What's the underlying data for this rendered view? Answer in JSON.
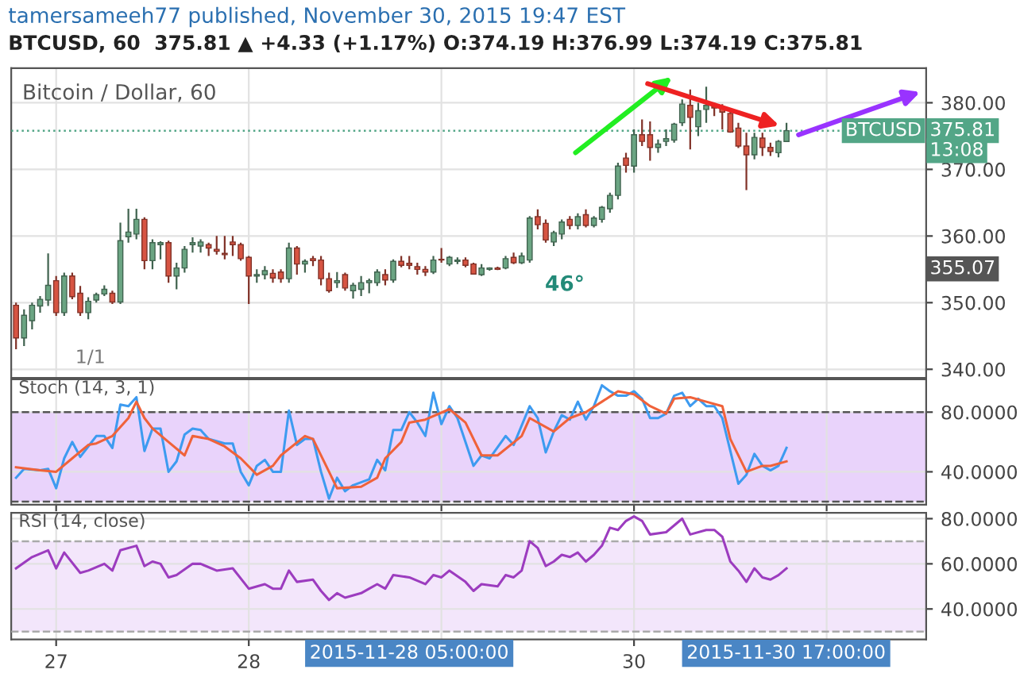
{
  "chart_data": [
    {
      "type": "candlestick",
      "title": "tamersameeh77 published, November 30, 2015 19:47 EST",
      "subtitle": "BTCUSD, 60  375.81 ▲ +4.33 (+1.17%) O:374.19 H:376.99 L:374.19 C:375.81",
      "x": [
        "2015-11-26T19:00",
        "2015-11-26T20:00",
        "2015-11-26T21:00",
        "2015-11-26T22:00",
        "2015-11-26T23:00",
        "2015-11-27T00:00",
        "2015-11-27T01:00",
        "2015-11-27T02:00",
        "2015-11-27T03:00",
        "2015-11-27T04:00",
        "2015-11-27T05:00",
        "2015-11-27T06:00",
        "2015-11-27T07:00",
        "2015-11-27T08:00",
        "2015-11-27T09:00",
        "2015-11-27T10:00",
        "2015-11-27T11:00",
        "2015-11-27T12:00",
        "2015-11-27T13:00",
        "2015-11-27T14:00",
        "2015-11-27T15:00",
        "2015-11-27T16:00",
        "2015-11-27T17:00",
        "2015-11-27T18:00",
        "2015-11-27T19:00",
        "2015-11-27T20:00",
        "2015-11-27T21:00",
        "2015-11-27T22:00",
        "2015-11-27T23:00",
        "2015-11-28T00:00",
        "2015-11-28T01:00",
        "2015-11-28T02:00",
        "2015-11-28T03:00",
        "2015-11-28T04:00",
        "2015-11-28T05:00",
        "2015-11-28T06:00",
        "2015-11-28T07:00",
        "2015-11-28T08:00",
        "2015-11-28T09:00",
        "2015-11-28T10:00",
        "2015-11-28T11:00",
        "2015-11-28T12:00",
        "2015-11-28T13:00",
        "2015-11-28T14:00",
        "2015-11-28T15:00",
        "2015-11-28T16:00",
        "2015-11-28T17:00",
        "2015-11-28T18:00",
        "2015-11-28T19:00",
        "2015-11-28T20:00",
        "2015-11-28T21:00",
        "2015-11-28T22:00",
        "2015-11-28T23:00",
        "2015-11-29T00:00",
        "2015-11-29T01:00",
        "2015-11-29T02:00",
        "2015-11-29T03:00",
        "2015-11-29T04:00",
        "2015-11-29T05:00",
        "2015-11-29T06:00",
        "2015-11-29T07:00",
        "2015-11-29T08:00",
        "2015-11-29T09:00",
        "2015-11-29T10:00",
        "2015-11-29T11:00",
        "2015-11-29T12:00",
        "2015-11-29T13:00",
        "2015-11-29T14:00",
        "2015-11-29T15:00",
        "2015-11-29T16:00",
        "2015-11-29T17:00",
        "2015-11-29T18:00",
        "2015-11-29T19:00",
        "2015-11-29T20:00",
        "2015-11-29T21:00",
        "2015-11-29T22:00",
        "2015-11-29T23:00",
        "2015-11-30T00:00",
        "2015-11-30T01:00",
        "2015-11-30T02:00",
        "2015-11-30T03:00",
        "2015-11-30T04:00",
        "2015-11-30T05:00",
        "2015-11-30T06:00",
        "2015-11-30T07:00",
        "2015-11-30T08:00",
        "2015-11-30T09:00",
        "2015-11-30T10:00",
        "2015-11-30T11:00",
        "2015-11-30T12:00",
        "2015-11-30T13:00",
        "2015-11-30T14:00",
        "2015-11-30T15:00",
        "2015-11-30T16:00",
        "2015-11-30T17:00",
        "2015-11-30T18:00",
        "2015-11-30T19:00"
      ],
      "ohlc": [
        [
          349.6,
          350.0,
          343.0,
          344.7
        ],
        [
          344.7,
          349.0,
          343.5,
          348.1
        ],
        [
          347.3,
          350.0,
          346.0,
          349.6
        ],
        [
          349.5,
          351.0,
          348.5,
          350.5
        ],
        [
          350.4,
          357.4,
          349.5,
          352.6
        ],
        [
          353.3,
          354.0,
          348.0,
          348.5
        ],
        [
          348.5,
          354.5,
          348.0,
          354.0
        ],
        [
          354.0,
          354.5,
          350.5,
          350.9
        ],
        [
          351.4,
          352.5,
          348.0,
          348.5
        ],
        [
          348.5,
          350.8,
          347.5,
          350.2
        ],
        [
          350.4,
          351.5,
          350.0,
          351.2
        ],
        [
          351.3,
          352.6,
          351.0,
          352.0
        ],
        [
          351.4,
          351.8,
          349.8,
          350.1
        ],
        [
          350.1,
          362.0,
          349.8,
          359.3
        ],
        [
          359.9,
          364.1,
          359.0,
          360.6
        ],
        [
          360.3,
          364.1,
          359.5,
          362.5
        ],
        [
          362.5,
          362.8,
          355.0,
          356.3
        ],
        [
          356.3,
          359.5,
          355.0,
          359.0
        ],
        [
          358.7,
          359.2,
          356.5,
          359.0
        ],
        [
          359.0,
          359.3,
          353.0,
          354.0
        ],
        [
          354.0,
          356.0,
          352.0,
          355.2
        ],
        [
          355.2,
          358.5,
          354.5,
          358.0
        ],
        [
          358.7,
          359.8,
          357.5,
          359.0
        ],
        [
          358.5,
          359.5,
          357.5,
          359.1
        ],
        [
          358.7,
          359.0,
          357.0,
          358.2
        ],
        [
          358.0,
          360.0,
          357.2,
          357.7
        ],
        [
          357.4,
          360.0,
          356.5,
          357.2
        ],
        [
          359.1,
          360.0,
          357.0,
          358.7
        ],
        [
          358.7,
          359.0,
          356.3,
          356.6
        ],
        [
          356.8,
          357.0,
          349.8,
          354.0
        ],
        [
          354.0,
          355.0,
          353.0,
          354.2
        ],
        [
          354.2,
          355.5,
          353.5,
          354.8
        ],
        [
          354.4,
          355.0,
          353.0,
          353.7
        ],
        [
          354.6,
          355.0,
          353.0,
          353.6
        ],
        [
          353.6,
          359.0,
          353.0,
          358.2
        ],
        [
          358.2,
          358.5,
          354.2,
          355.8
        ],
        [
          355.8,
          356.5,
          354.5,
          356.2
        ],
        [
          356.6,
          357.0,
          355.5,
          356.3
        ],
        [
          356.4,
          357.0,
          352.6,
          353.6
        ],
        [
          353.6,
          354.5,
          351.5,
          351.8
        ],
        [
          353.0,
          354.6,
          352.2,
          353.3
        ],
        [
          354.2,
          354.5,
          351.8,
          352.2
        ],
        [
          351.8,
          353.0,
          350.6,
          352.6
        ],
        [
          352.0,
          354.0,
          351.0,
          353.0
        ],
        [
          353.0,
          353.6,
          351.4,
          353.3
        ],
        [
          353.0,
          355.0,
          352.5,
          354.6
        ],
        [
          354.2,
          355.0,
          352.6,
          353.4
        ],
        [
          353.4,
          356.5,
          353.0,
          356.2
        ],
        [
          356.2,
          357.0,
          355.3,
          355.6
        ],
        [
          355.9,
          357.0,
          355.0,
          355.6
        ],
        [
          355.4,
          356.0,
          354.2,
          355.0
        ],
        [
          355.0,
          355.5,
          354.0,
          354.6
        ],
        [
          354.6,
          357.0,
          354.3,
          356.4
        ],
        [
          356.5,
          358.2,
          356.0,
          356.4
        ],
        [
          355.8,
          357.0,
          355.5,
          356.8
        ],
        [
          356.2,
          356.8,
          355.8,
          356.4
        ],
        [
          356.4,
          356.8,
          355.3,
          355.6
        ],
        [
          355.8,
          356.0,
          354.2,
          354.3
        ],
        [
          354.2,
          355.8,
          354.0,
          355.2
        ],
        [
          355.0,
          355.3,
          354.8,
          355.2
        ],
        [
          355.2,
          355.4,
          354.9,
          355.0
        ],
        [
          355.2,
          357.0,
          355.0,
          356.6
        ],
        [
          356.8,
          357.5,
          355.8,
          356.0
        ],
        [
          356.0,
          357.5,
          355.8,
          357.0
        ],
        [
          356.4,
          363.0,
          356.0,
          362.7
        ],
        [
          362.9,
          364.0,
          361.0,
          361.7
        ],
        [
          361.9,
          362.5,
          359.0,
          359.4
        ],
        [
          359.1,
          360.8,
          358.5,
          360.5
        ],
        [
          360.3,
          362.5,
          359.5,
          362.1
        ],
        [
          362.5,
          363.0,
          361.0,
          361.6
        ],
        [
          361.6,
          363.4,
          361.0,
          362.9
        ],
        [
          363.2,
          364.0,
          361.3,
          361.6
        ],
        [
          361.6,
          363.0,
          361.3,
          362.7
        ],
        [
          362.5,
          364.5,
          362.0,
          364.3
        ],
        [
          364.1,
          366.5,
          363.5,
          366.1
        ],
        [
          366.1,
          371.0,
          365.5,
          370.5
        ],
        [
          371.7,
          372.5,
          369.5,
          370.6
        ],
        [
          370.5,
          376.0,
          369.5,
          375.2
        ],
        [
          375.2,
          377.5,
          373.5,
          374.2
        ],
        [
          375.2,
          377.2,
          371.3,
          373.3
        ],
        [
          373.3,
          374.5,
          372.5,
          373.8
        ],
        [
          374.2,
          376.0,
          373.5,
          374.6
        ],
        [
          374.4,
          377.0,
          374.0,
          376.8
        ],
        [
          377.0,
          380.5,
          376.5,
          379.8
        ],
        [
          379.6,
          382.0,
          373.0,
          377.8
        ],
        [
          376.4,
          380.0,
          375.0,
          378.8
        ],
        [
          379.0,
          382.4,
          377.0,
          379.6
        ],
        [
          379.4,
          380.0,
          378.0,
          379.2
        ],
        [
          379.2,
          379.8,
          376.0,
          378.6
        ],
        [
          378.4,
          379.0,
          375.5,
          375.6
        ],
        [
          376.2,
          377.0,
          373.2,
          373.5
        ],
        [
          373.5,
          375.5,
          366.9,
          372.2
        ],
        [
          372.2,
          375.5,
          371.5,
          374.8
        ],
        [
          374.7,
          375.5,
          372.0,
          373.3
        ],
        [
          373.3,
          374.0,
          372.0,
          372.7
        ],
        [
          372.5,
          374.4,
          371.8,
          374.2
        ],
        [
          374.19,
          376.99,
          374.19,
          375.81
        ]
      ],
      "colors": [
        "#d75442",
        "#6ba583",
        "#6ba583",
        "#6ba583",
        "#6ba583",
        "#d75442",
        "#6ba583",
        "#d75442",
        "#d75442",
        "#6ba583",
        "#6ba583",
        "#6ba583",
        "#d75442",
        "#6ba583",
        "#6ba583",
        "#6ba583",
        "#d75442",
        "#6ba583",
        "#6ba583",
        "#d75442",
        "#6ba583",
        "#6ba583",
        "#6ba583",
        "#6ba583",
        "#d75442",
        "#d75442",
        "#d75442",
        "#d75442",
        "#d75442",
        "#d75442",
        "#6ba583",
        "#6ba583",
        "#d75442",
        "#d75442",
        "#6ba583",
        "#d75442",
        "#6ba583",
        "#d75442",
        "#d75442",
        "#d75442",
        "#6ba583",
        "#d75442",
        "#6ba583",
        "#6ba583",
        "#6ba583",
        "#6ba583",
        "#d75442",
        "#6ba583",
        "#d75442",
        "#d75442",
        "#d75442",
        "#d75442",
        "#6ba583",
        "#d75442",
        "#6ba583",
        "#6ba583",
        "#d75442",
        "#d75442",
        "#6ba583",
        "#6ba583",
        "#d75442",
        "#6ba583",
        "#d75442",
        "#6ba583",
        "#6ba583",
        "#d75442",
        "#d75442",
        "#6ba583",
        "#6ba583",
        "#d75442",
        "#6ba583",
        "#d75442",
        "#6ba583",
        "#6ba583",
        "#6ba583",
        "#6ba583",
        "#d75442",
        "#6ba583",
        "#d75442",
        "#d75442",
        "#6ba583",
        "#6ba583",
        "#6ba583",
        "#6ba583",
        "#d75442",
        "#6ba583",
        "#6ba583",
        "#d75442",
        "#d75442",
        "#d75442",
        "#d75442",
        "#d75442",
        "#6ba583",
        "#d75442",
        "#d75442",
        "#6ba583",
        "#6ba583"
      ],
      "xlim": [
        "2015-11-26T18:24",
        "2015-12-01T12:24"
      ],
      "xticks": [
        {
          "value": "2015-11-27",
          "label": null
        },
        {
          "value": "2015-11-28",
          "label": null
        },
        {
          "value": "2015-11-29",
          "label": null
        },
        {
          "value": "2015-11-30",
          "label": null
        },
        {
          "value": "2015-12-01",
          "label": null
        }
      ],
      "ylim": [
        338.7,
        385.2
      ],
      "yticks": [
        {
          "value": 340,
          "label": "340.00"
        },
        {
          "value": 350,
          "label": "350.00"
        },
        {
          "value": 360,
          "label": "360.00"
        },
        {
          "value": 370,
          "label": "370.00"
        },
        {
          "value": 380,
          "label": "380.00"
        }
      ],
      "ref_lines": [
        {
          "axis": "y",
          "value": 375.81,
          "label": "375.81",
          "color": "#53a687",
          "line_style": "dotted"
        }
      ],
      "annotations": [
        "Bitcoin / Dollar, 60",
        "1/1",
        "46°",
        "BTCUSD",
        {
          "text": "13:08",
          "y": 372.8
        },
        "355.07"
      ],
      "grid": true,
      "tick_labels": "y"
    },
    {
      "type": "line",
      "title": "Stoch (14, 3, 1)",
      "series": [
        {
          "color": "#3d9bf0",
          "x": [
            "2015-11-26T19:00",
            "2015-11-26T20:00",
            "2015-11-26T22:00",
            "2015-11-26T23:00",
            "2015-11-27T00:00",
            "2015-11-27T01:00",
            "2015-11-27T02:00",
            "2015-11-27T03:00",
            "2015-11-27T04:00",
            "2015-11-27T05:00",
            "2015-11-27T06:00",
            "2015-11-27T07:00",
            "2015-11-27T08:00",
            "2015-11-27T09:00",
            "2015-11-27T10:00",
            "2015-11-27T11:00",
            "2015-11-27T12:00",
            "2015-11-27T13:00",
            "2015-11-27T14:00",
            "2015-11-27T15:00",
            "2015-11-27T16:00",
            "2015-11-27T17:00",
            "2015-11-27T18:00",
            "2015-11-27T19:00",
            "2015-11-27T21:00",
            "2015-11-27T22:00",
            "2015-11-27T23:00",
            "2015-11-28T00:00",
            "2015-11-28T01:00",
            "2015-11-28T02:00",
            "2015-11-28T03:00",
            "2015-11-28T04:00",
            "2015-11-28T05:00",
            "2015-11-28T06:00",
            "2015-11-28T07:00",
            "2015-11-28T08:00",
            "2015-11-28T09:00",
            "2015-11-28T10:00",
            "2015-11-28T11:00",
            "2015-11-28T12:00",
            "2015-11-28T13:00",
            "2015-11-28T15:00",
            "2015-11-28T16:00",
            "2015-11-28T17:00",
            "2015-11-28T18:00",
            "2015-11-28T19:00",
            "2015-11-28T20:00",
            "2015-11-28T21:00",
            "2015-11-28T22:00",
            "2015-11-28T23:00",
            "2015-11-29T00:00",
            "2015-11-29T01:00",
            "2015-11-29T02:00",
            "2015-11-29T04:00",
            "2015-11-29T05:00",
            "2015-11-29T06:00",
            "2015-11-29T08:00",
            "2015-11-29T09:00",
            "2015-11-29T11:00",
            "2015-11-29T12:00",
            "2015-11-29T13:00",
            "2015-11-29T14:00",
            "2015-11-29T15:00",
            "2015-11-29T16:00",
            "2015-11-29T17:00",
            "2015-11-29T18:00",
            "2015-11-29T19:00",
            "2015-11-29T20:00",
            "2015-11-29T21:00",
            "2015-11-29T22:00",
            "2015-11-29T23:00",
            "2015-11-30T00:00",
            "2015-11-30T01:00",
            "2015-11-30T02:00",
            "2015-11-30T03:00",
            "2015-11-30T04:00",
            "2015-11-30T05:00",
            "2015-11-30T06:00",
            "2015-11-30T07:00",
            "2015-11-30T08:00",
            "2015-11-30T09:00",
            "2015-11-30T10:00",
            "2015-11-30T11:00",
            "2015-11-30T13:00",
            "2015-11-30T14:00",
            "2015-11-30T15:00",
            "2015-11-30T16:00",
            "2015-11-30T17:00",
            "2015-11-30T18:00",
            "2015-11-30T19:00"
          ],
          "values": [
            36,
            42,
            41,
            42,
            29,
            49,
            60,
            50,
            57,
            64,
            64,
            56,
            85,
            84,
            90,
            54,
            69,
            69,
            40,
            47,
            65,
            69,
            68,
            62,
            59,
            59,
            40,
            31,
            44,
            48,
            40,
            40,
            81,
            58,
            62,
            62,
            40,
            22,
            36,
            27,
            31,
            35,
            48,
            41,
            68,
            68,
            80,
            73,
            64,
            93,
            72,
            84,
            76,
            44,
            51,
            49,
            64,
            58,
            84,
            76,
            53,
            67,
            78,
            75,
            87,
            75,
            84,
            98,
            94,
            91,
            91,
            94,
            89,
            76,
            76,
            79,
            91,
            93,
            84,
            89,
            84,
            84,
            76,
            32,
            38,
            52,
            44,
            41,
            44,
            56
          ]
        },
        {
          "color": "#f0623a",
          "x": [
            "2015-11-26T19:00",
            "2015-11-26T22:00",
            "2015-11-27T00:00",
            "2015-11-27T02:00",
            "2015-11-27T04:00",
            "2015-11-27T05:00",
            "2015-11-27T07:00",
            "2015-11-27T09:00",
            "2015-11-27T10:00",
            "2015-11-27T11:00",
            "2015-11-27T12:00",
            "2015-11-27T14:00",
            "2015-11-27T16:00",
            "2015-11-27T17:00",
            "2015-11-27T19:00",
            "2015-11-27T21:00",
            "2015-11-27T23:00",
            "2015-11-28T01:00",
            "2015-11-28T03:00",
            "2015-11-28T04:00",
            "2015-11-28T07:00",
            "2015-11-28T08:00",
            "2015-11-28T10:00",
            "2015-11-28T11:00",
            "2015-11-28T14:00",
            "2015-11-28T16:00",
            "2015-11-28T17:00",
            "2015-11-28T19:00",
            "2015-11-28T20:00",
            "2015-11-28T22:00",
            "2015-11-29T01:00",
            "2015-11-29T03:00",
            "2015-11-29T05:00",
            "2015-11-29T07:00",
            "2015-11-29T10:00",
            "2015-11-29T11:00",
            "2015-11-29T14:00",
            "2015-11-29T16:00",
            "2015-11-29T18:00",
            "2015-11-29T20:00",
            "2015-11-29T22:00",
            "2015-11-30T00:00",
            "2015-11-30T02:00",
            "2015-11-30T04:00",
            "2015-11-30T05:00",
            "2015-11-30T07:00",
            "2015-11-30T09:00",
            "2015-11-30T11:00",
            "2015-11-30T12:00",
            "2015-11-30T14:00",
            "2015-11-30T16:00",
            "2015-11-30T17:00",
            "2015-11-30T19:00"
          ],
          "values": [
            43,
            41,
            40,
            49,
            58,
            59,
            64,
            76,
            87,
            76,
            69,
            60,
            51,
            64,
            62,
            57,
            49,
            38,
            44,
            51,
            64,
            62,
            40,
            29,
            30,
            36,
            49,
            60,
            73,
            75,
            82,
            73,
            51,
            51,
            64,
            76,
            67,
            76,
            80,
            87,
            94,
            92,
            84,
            79,
            89,
            90,
            87,
            84,
            62,
            40,
            44,
            44,
            47
          ]
        }
      ],
      "xlim": [
        "2015-11-26T18:24",
        "2015-12-01T12:24"
      ],
      "xticks": [
        {
          "value": "2015-11-27",
          "label": null
        },
        {
          "value": "2015-11-28",
          "label": null
        },
        {
          "value": "2015-11-29",
          "label": null
        },
        {
          "value": "2015-11-30",
          "label": null
        },
        {
          "value": "2015-12-01",
          "label": null
        }
      ],
      "ylim": [
        18,
        102
      ],
      "yticks": [
        {
          "value": 40,
          "label": "40.0000"
        },
        {
          "value": 80,
          "label": "80.0000"
        }
      ],
      "ref_lines": [
        {
          "axis": "y",
          "value": 80,
          "color": "#555555",
          "line_style": "dashed"
        },
        {
          "axis": "y",
          "value": 20,
          "color": "#555555",
          "line_style": "dashed"
        }
      ],
      "bands": [
        {
          "axis": "y",
          "from": 20,
          "to": 80,
          "color": "#e9d3fb"
        }
      ],
      "grid": true,
      "tick_labels": "y",
      "line_style": "solid"
    },
    {
      "type": "line",
      "title": "RSI (14, close)",
      "series": [
        {
          "color": "#9c3cbf",
          "x": [
            "2015-11-26T19:00",
            "2015-11-26T21:00",
            "2015-11-26T23:00",
            "2015-11-27T00:00",
            "2015-11-27T01:00",
            "2015-11-27T03:00",
            "2015-11-27T04:00",
            "2015-11-27T06:00",
            "2015-11-27T07:00",
            "2015-11-27T08:00",
            "2015-11-27T10:00",
            "2015-11-27T11:00",
            "2015-11-27T12:00",
            "2015-11-27T13:00",
            "2015-11-27T14:00",
            "2015-11-27T15:00",
            "2015-11-27T17:00",
            "2015-11-27T18:00",
            "2015-11-27T20:00",
            "2015-11-27T22:00",
            "2015-11-28T00:00",
            "2015-11-28T02:00",
            "2015-11-28T03:00",
            "2015-11-28T04:00",
            "2015-11-28T05:00",
            "2015-11-28T06:00",
            "2015-11-28T08:00",
            "2015-11-28T09:00",
            "2015-11-28T10:00",
            "2015-11-28T11:00",
            "2015-11-28T12:00",
            "2015-11-28T14:00",
            "2015-11-28T15:00",
            "2015-11-28T16:00",
            "2015-11-28T17:00",
            "2015-11-28T18:00",
            "2015-11-28T20:00",
            "2015-11-28T22:00",
            "2015-11-28T23:00",
            "2015-11-29T00:00",
            "2015-11-29T01:00",
            "2015-11-29T03:00",
            "2015-11-29T04:00",
            "2015-11-29T05:00",
            "2015-11-29T07:00",
            "2015-11-29T08:00",
            "2015-11-29T09:00",
            "2015-11-29T10:00",
            "2015-11-29T11:00",
            "2015-11-29T12:00",
            "2015-11-29T13:00",
            "2015-11-29T14:00",
            "2015-11-29T15:00",
            "2015-11-29T16:00",
            "2015-11-29T17:00",
            "2015-11-29T18:00",
            "2015-11-29T19:00",
            "2015-11-29T20:00",
            "2015-11-29T21:00",
            "2015-11-29T22:00",
            "2015-11-29T23:00",
            "2015-11-30T00:00",
            "2015-11-30T01:00",
            "2015-11-30T02:00",
            "2015-11-30T04:00",
            "2015-11-30T06:00",
            "2015-11-30T07:00",
            "2015-11-30T09:00",
            "2015-11-30T10:00",
            "2015-11-30T11:00",
            "2015-11-30T12:00",
            "2015-11-30T13:00",
            "2015-11-30T14:00",
            "2015-11-30T15:00",
            "2015-11-30T16:00",
            "2015-11-30T17:00",
            "2015-11-30T18:00",
            "2015-11-30T19:00"
          ],
          "values": [
            58,
            63,
            66,
            58,
            65,
            56,
            57,
            60,
            57,
            66,
            68,
            59,
            61,
            60,
            54,
            55,
            60,
            60,
            57,
            58,
            49,
            51,
            49,
            49,
            57,
            52,
            53,
            48,
            44,
            47,
            45,
            47,
            49,
            51,
            49,
            55,
            54,
            51,
            55,
            54,
            57,
            52,
            48,
            51,
            50,
            55,
            54,
            57,
            70,
            67,
            59,
            61,
            64,
            63,
            65,
            61,
            64,
            68,
            76,
            75,
            79,
            81,
            79,
            73,
            74,
            80,
            73,
            75,
            75,
            72,
            61,
            57,
            52,
            58,
            54,
            53,
            55,
            58
          ]
        }
      ],
      "xlim": [
        "2015-11-26T18:24",
        "2015-12-01T12:24"
      ],
      "xticks": [
        {
          "value": "2015-11-27",
          "label": "27"
        },
        {
          "value": "2015-11-28",
          "label": "28"
        },
        {
          "value": "2015-11-29",
          "label": null
        },
        {
          "value": "2015-11-30",
          "label": "30"
        },
        {
          "value": "2015-12-01",
          "label": null
        }
      ],
      "ylim": [
        26.5,
        82.6
      ],
      "yticks": [
        {
          "value": 40,
          "label": "40.0000"
        },
        {
          "value": 60,
          "label": "60.0000"
        },
        {
          "value": 80,
          "label": "80.0000"
        }
      ],
      "ref_lines": [
        {
          "axis": "y",
          "value": 70,
          "color": "#aaaaaa",
          "line_style": "dashed"
        },
        {
          "axis": "y",
          "value": 30,
          "color": "#aaaaaa",
          "line_style": "dashed"
        }
      ],
      "bands": [
        {
          "axis": "y",
          "from": 30,
          "to": 70,
          "color": "#f3e6fb"
        }
      ],
      "annotations": [
        "2015-11-28 05:00:00",
        "2015-11-30 17:00:00"
      ],
      "grid": true,
      "line_style": "solid"
    }
  ]
}
